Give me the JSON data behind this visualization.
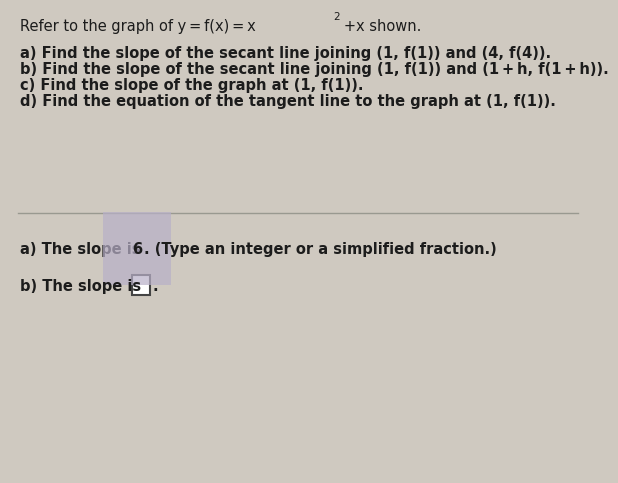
{
  "background_color": "#cfc9c0",
  "title_line": "Refer to the graph of y = f(x) = x",
  "title_sup": "2",
  "title_end": " +x shown.",
  "questions": [
    "a) Find the slope of the secant line joining (1, f(1)) and (4, f(4)).",
    "b) Find the slope of the secant line joining (1, f(1)) and (1 + h, f(1 + h)).",
    "c) Find the slope of the graph at (1, f(1)).",
    "d) Find the equation of the tangent line to the graph at (1, f(1))."
  ],
  "divider_color": "#999990",
  "answer_a_pre": "a) The slope is ",
  "answer_a_val": "6",
  "answer_a_post": ". (Type an integer or a simplified fraction.)",
  "answer_b_pre": "b) The slope is ",
  "text_color": "#1c1c1c",
  "font_size": 10.5,
  "answer_font_size": 10.5,
  "highlight_6_color": "#b8b0c8",
  "box_bg": "#ffffff",
  "box_border": "#444444"
}
